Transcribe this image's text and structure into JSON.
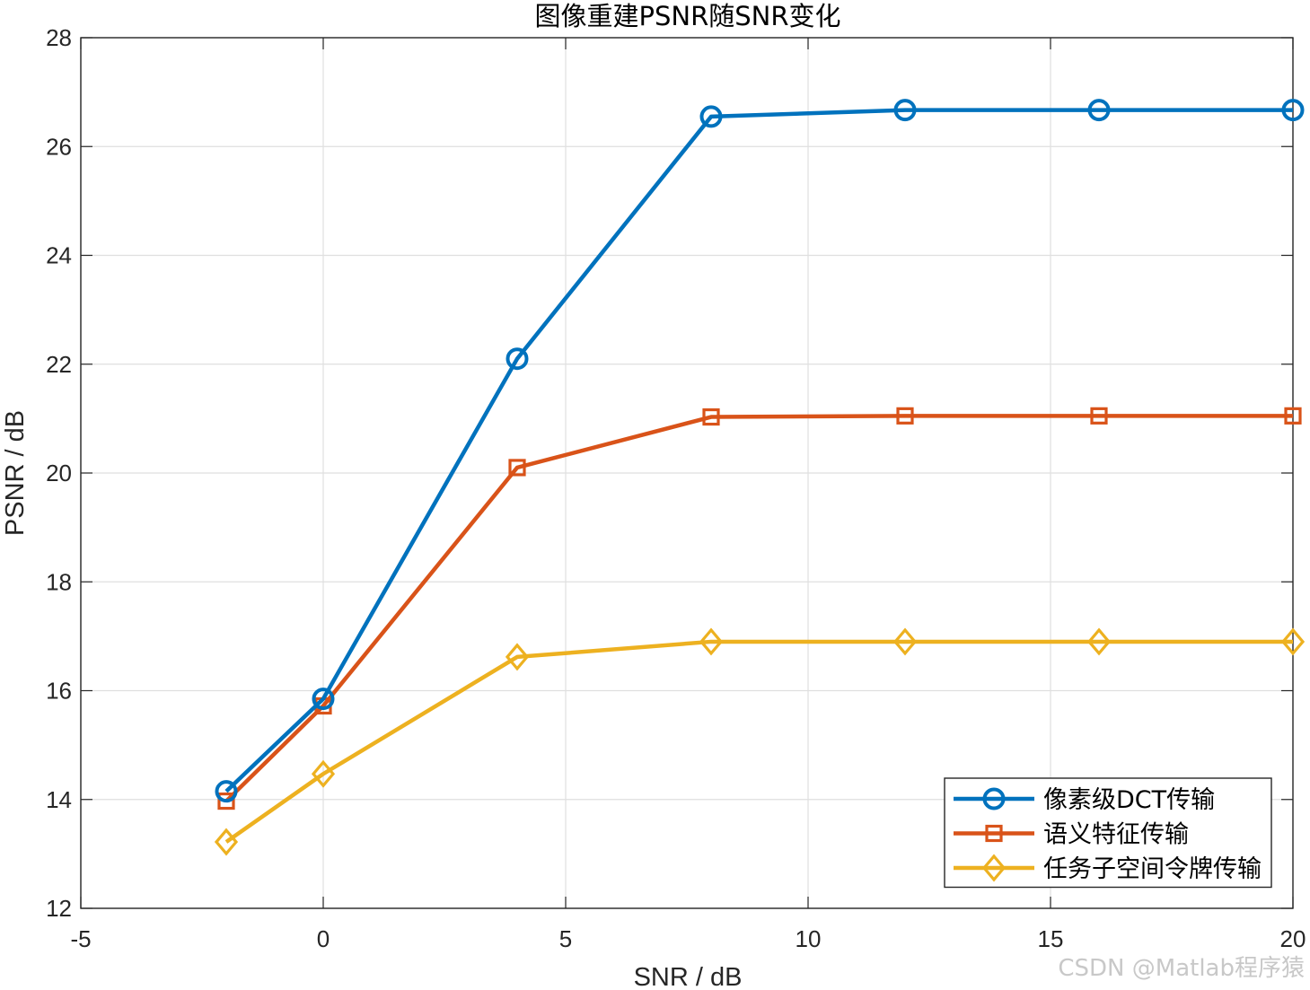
{
  "chart_data": {
    "type": "line",
    "title": "图像重建PSNR随SNR变化",
    "xlabel": "SNR / dB",
    "ylabel": "PSNR / dB",
    "xlim": [
      -5,
      20
    ],
    "ylim": [
      12,
      28
    ],
    "xticks": [
      -5,
      0,
      5,
      10,
      15,
      20
    ],
    "yticks": [
      12,
      14,
      16,
      18,
      20,
      22,
      24,
      26,
      28
    ],
    "grid": true,
    "legend_position": "bottom-right",
    "x": [
      -2,
      0,
      4,
      8,
      12,
      16,
      20
    ],
    "series": [
      {
        "name": "像素级DCT传输",
        "marker": "circle",
        "color": "#0072BD",
        "values": [
          14.15,
          15.85,
          22.1,
          26.55,
          26.67,
          26.67,
          26.67
        ]
      },
      {
        "name": "语义特征传输",
        "marker": "square",
        "color": "#D95319",
        "values": [
          13.97,
          15.72,
          20.1,
          21.03,
          21.05,
          21.05,
          21.05
        ]
      },
      {
        "name": "任务子空间令牌传输",
        "marker": "diamond",
        "color": "#EDB120",
        "values": [
          13.22,
          14.47,
          16.62,
          16.9,
          16.9,
          16.9,
          16.9
        ]
      }
    ]
  },
  "watermark": "CSDN @Matlab程序猿"
}
